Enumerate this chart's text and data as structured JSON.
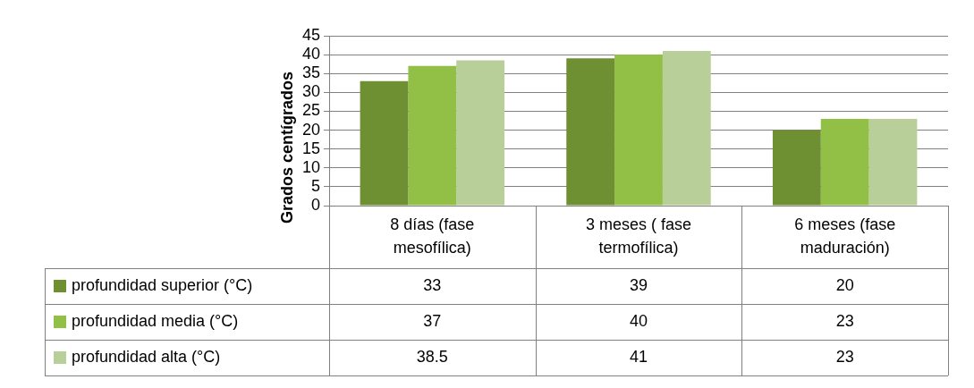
{
  "chart_data": {
    "type": "bar",
    "ylabel": "Grados centígrados",
    "categories": [
      "8 días (fase mesofílica)",
      "3 meses ( fase termofílica)",
      "6 meses (fase maduración)"
    ],
    "series": [
      {
        "name": "profundidad superior (°C)",
        "color": "#6e8f32",
        "values": [
          33,
          39,
          20
        ]
      },
      {
        "name": "profundidad media (°C)",
        "color": "#92c047",
        "values": [
          37,
          40,
          23
        ]
      },
      {
        "name": "profundidad alta (°C)",
        "color": "#b9cf99",
        "values": [
          38.5,
          41,
          23
        ]
      }
    ],
    "ylim": [
      0,
      45
    ],
    "yticks": [
      0,
      5,
      10,
      15,
      20,
      25,
      30,
      35,
      40,
      45
    ],
    "grid": "y",
    "legend": "bottom left",
    "data_labels": true
  }
}
